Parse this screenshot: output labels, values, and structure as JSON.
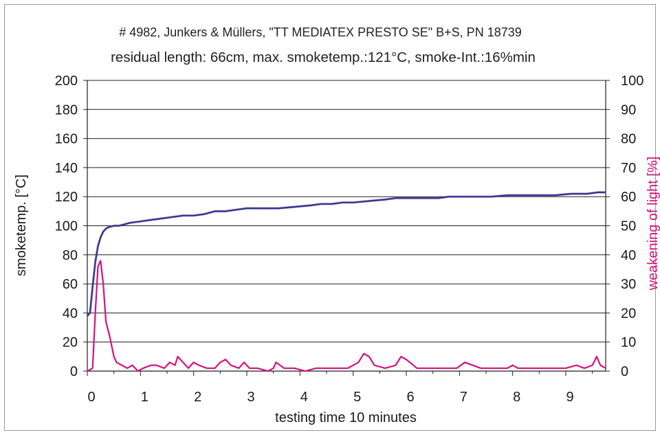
{
  "chart_data": {
    "type": "line",
    "title": "# 4982, Junkers & Müllers, \"TT MEDIATEX PRESTO SE\" B+S, PN 18739",
    "subtitle": "residual length: 66cm, max. smoketemp.:121°C, smoke-Int.:16%min",
    "xlabel": "testing time 10 minutes",
    "ylabel": "smoketemp. [°C]",
    "y2label": "weakening of light [%]",
    "xlim": [
      0,
      9.75
    ],
    "ylim": [
      0,
      200
    ],
    "y2lim": [
      0,
      100
    ],
    "x_ticks": [
      "0",
      "1",
      "2",
      "3",
      "4",
      "5",
      "6",
      "7",
      "8",
      "9"
    ],
    "y_ticks": [
      "0",
      "20",
      "40",
      "60",
      "80",
      "100",
      "120",
      "140",
      "160",
      "180",
      "200"
    ],
    "y2_ticks": [
      "0",
      "10",
      "20",
      "30",
      "40",
      "50",
      "60",
      "70",
      "80",
      "90",
      "100"
    ],
    "grid": "horizontal",
    "legend": "none",
    "colors": {
      "temperature": "#2a3a8c",
      "light": "#d4107f"
    },
    "series": [
      {
        "axis": "left",
        "x": [
          0,
          0.05,
          0.1,
          0.15,
          0.2,
          0.25,
          0.3,
          0.35,
          0.4,
          0.5,
          0.6,
          0.7,
          0.8,
          1.0,
          1.2,
          1.4,
          1.6,
          1.8,
          2.0,
          2.2,
          2.4,
          2.6,
          2.8,
          3.0,
          3.3,
          3.6,
          3.9,
          4.2,
          4.4,
          4.6,
          4.8,
          5.0,
          5.3,
          5.6,
          5.8,
          6.0,
          6.3,
          6.6,
          6.8,
          7.0,
          7.3,
          7.6,
          7.9,
          8.2,
          8.5,
          8.8,
          9.1,
          9.4,
          9.6,
          9.75
        ],
        "values": [
          38,
          40,
          58,
          75,
          86,
          92,
          96,
          98,
          99,
          100,
          100,
          101,
          102,
          103,
          104,
          105,
          106,
          107,
          107,
          108,
          110,
          110,
          111,
          112,
          112,
          112,
          113,
          114,
          115,
          115,
          116,
          116,
          117,
          118,
          119,
          119,
          119,
          119,
          120,
          120,
          120,
          120,
          121,
          121,
          121,
          121,
          122,
          122,
          123,
          123
        ]
      },
      {
        "axis": "right",
        "x": [
          0,
          0.1,
          0.15,
          0.2,
          0.25,
          0.3,
          0.35,
          0.42,
          0.5,
          0.55,
          0.65,
          0.75,
          0.85,
          0.95,
          1.05,
          1.2,
          1.3,
          1.45,
          1.55,
          1.65,
          1.7,
          1.8,
          1.9,
          2.0,
          2.1,
          2.25,
          2.4,
          2.5,
          2.6,
          2.7,
          2.85,
          2.95,
          3.05,
          3.2,
          3.4,
          3.5,
          3.55,
          3.7,
          3.9,
          4.1,
          4.3,
          4.6,
          4.9,
          5.1,
          5.2,
          5.3,
          5.4,
          5.6,
          5.8,
          5.9,
          6.0,
          6.2,
          6.5,
          6.8,
          6.95,
          7.1,
          7.4,
          7.7,
          7.9,
          8.0,
          8.1,
          8.4,
          8.7,
          9.0,
          9.2,
          9.35,
          9.5,
          9.58,
          9.65,
          9.75
        ],
        "values": [
          0,
          1,
          20,
          36,
          38,
          30,
          17,
          12,
          5,
          3,
          2,
          1,
          2,
          0,
          1,
          2,
          2,
          1,
          3,
          2,
          5,
          3,
          1,
          3,
          2,
          1,
          1,
          3,
          4,
          2,
          1,
          3,
          1,
          1,
          0,
          1,
          3,
          1,
          1,
          0,
          1,
          1,
          1,
          3,
          6,
          5,
          2,
          1,
          2,
          5,
          4,
          1,
          1,
          1,
          1,
          3,
          1,
          1,
          1,
          2,
          1,
          1,
          1,
          1,
          2,
          1,
          2,
          5,
          2,
          1
        ]
      }
    ]
  }
}
